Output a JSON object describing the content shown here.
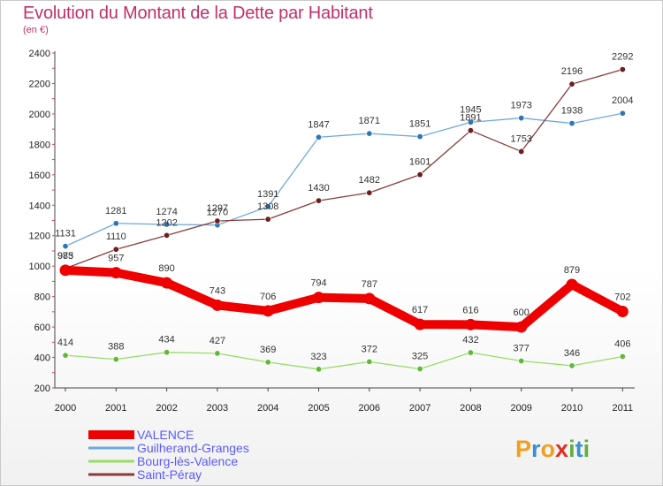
{
  "title": "Evolution du Montant de la Dette par Habitant",
  "subtitle": "(en €)",
  "brand": {
    "text": "Proxiti",
    "letters": [
      "P",
      "r",
      "o",
      "x",
      "i",
      "t",
      "i"
    ],
    "colors": [
      "#f0a020",
      "#3c8fd0",
      "#f0a020",
      "#e0301e",
      "#60b040",
      "#3c8fd0",
      "#60b040"
    ]
  },
  "chart_data": {
    "type": "line",
    "title": "Evolution du Montant de la Dette par Habitant",
    "ylabel": "(en €)",
    "xlabel": "",
    "x": [
      "2000",
      "2001",
      "2002",
      "2003",
      "2004",
      "2005",
      "2006",
      "2007",
      "2008",
      "2009",
      "2010",
      "2011"
    ],
    "ylim": [
      200,
      2400
    ],
    "yticks": [
      "200",
      "400",
      "600",
      "800",
      "1000",
      "1200",
      "1400",
      "1600",
      "1800",
      "2000",
      "2200",
      "2400"
    ],
    "legend_position": "bottom-left",
    "grid": false,
    "series": [
      {
        "name": "VALENCE",
        "color": "#ee0000",
        "values": [
          973,
          957,
          890,
          743,
          706,
          794,
          787,
          617,
          616,
          600,
          879,
          702
        ],
        "labels": [
          "973",
          "957",
          "890",
          "743",
          "706",
          "794",
          "787",
          "617",
          "616",
          "600",
          "879",
          "702"
        ]
      },
      {
        "name": "Guilherand-Granges",
        "color": "#6fa8dc",
        "values": [
          1131,
          1281,
          1274,
          1270,
          1391,
          1847,
          1871,
          1851,
          1945,
          1973,
          1938,
          2004
        ],
        "labels": [
          "1131",
          "1281",
          "1274",
          "1270",
          "1391",
          "1847",
          "1871",
          "1851",
          "1945",
          "1973",
          "1938",
          "2004"
        ]
      },
      {
        "name": "Bourg-lès-Valence",
        "color": "#99dd66",
        "values": [
          414,
          388,
          434,
          427,
          369,
          323,
          372,
          325,
          432,
          377,
          346,
          406
        ],
        "labels": [
          "414",
          "388",
          "434",
          "427",
          "369",
          "323",
          "372",
          "325",
          "432",
          "377",
          "346",
          "406"
        ]
      },
      {
        "name": "Saint-Péray",
        "color": "#8b3a3a",
        "values": [
          985,
          1110,
          1202,
          1297,
          1308,
          1430,
          1482,
          1601,
          1891,
          1753,
          2196,
          2292
        ],
        "labels": [
          "985",
          "1110",
          "1202",
          "1297",
          "1308",
          "1430",
          "1482",
          "1601",
          "1891",
          "1753",
          "2196",
          "2292"
        ]
      }
    ]
  }
}
